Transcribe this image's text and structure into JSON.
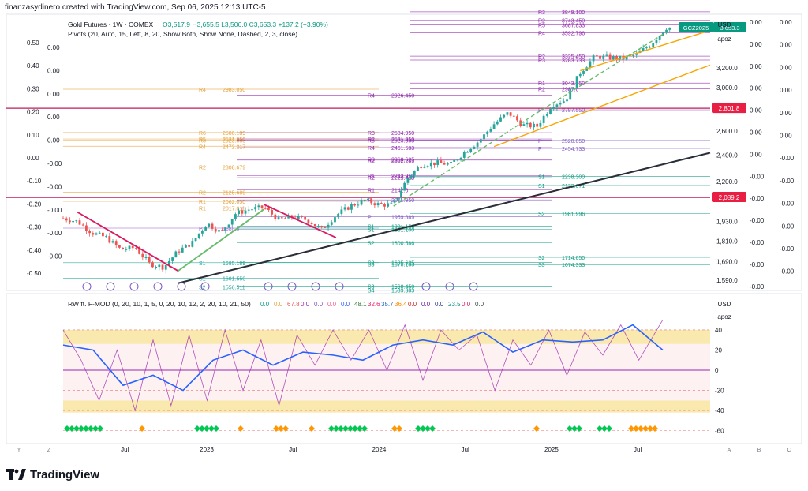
{
  "header": {
    "created_by": "finanzasydinero created with TradingView.com, Sep 06, 2025 12:13 UTC-5"
  },
  "legend": {
    "symbol": "Gold Futures · 1W · COMEX",
    "ohlc": "O3,517.9  H3,655.5  L3,506.0  C3,653.3  +137.2 (+3.90%)",
    "pivots": "Pivots (20, Auto, 15, Left, 8, 20, Show Both, Show None, Dashed, 2, 3, close)",
    "osc": "RW ft. F-MOD (0, 20, 10, 1, 5, 0, 20, 10, 12, 2, 20, 10, 21, 50)",
    "osc_values": [
      "0.0",
      "0.0",
      "67.8",
      "0.0",
      "0.0",
      "0.0",
      "0.0",
      "48.1",
      "32.6",
      "35.7",
      "36.4",
      "0.0",
      "0.0",
      "0.0",
      "23.5",
      "0.0",
      "0.0"
    ]
  },
  "price_axis": {
    "currency": "USD",
    "scale_mode": "apoz",
    "ticks": [
      "3,200.0",
      "3,000.0",
      "2,600.0",
      "2,400.0",
      "2,200.0",
      "1,930.0",
      "1,810.0",
      "1,690.0",
      "1,590.0"
    ],
    "last_price_tag": "3,653.3",
    "symbol_tag": "GCZ2025",
    "line_tags": [
      "2,801.8",
      "2,089.2"
    ]
  },
  "left_axis_labels": [
    "0.50",
    "0.40",
    "0.30",
    "0.20",
    "0.10",
    "0.00",
    "-0.10",
    "-0.20",
    "-0.30",
    "-0.40",
    "-0.50"
  ],
  "inner_left_labels": [
    "0.00",
    "0.00",
    "0.00",
    "0.00",
    "0.00",
    "-0.00",
    "-0.00",
    "-0.00",
    "-0.00",
    "-0.00"
  ],
  "right_extra_col1": [
    "0.00",
    "0.00",
    "0.00",
    "0.00",
    "0.00",
    "0.00",
    "0.00",
    "-0.00",
    "-0.00",
    "-0.00",
    "-0.00",
    "-0.00",
    "-0.00"
  ],
  "right_extra_col2": [
    "0.00",
    "0.00",
    "0.00",
    "0.00",
    "0.00",
    "0.00",
    "-0.00",
    "-0.00",
    "-0.00",
    "-0.00",
    "-0.00",
    "-0.00"
  ],
  "osc_axis": {
    "currency": "USD",
    "scale_mode": "apoz",
    "ticks": [
      "40",
      "20",
      "0",
      "-20",
      "-40",
      "-60"
    ]
  },
  "time_axis": [
    "Jul",
    "2023",
    "Jul",
    "2024",
    "Jul",
    "2025",
    "Jul"
  ],
  "bottom_controls": [
    "Y",
    "Z",
    "A",
    "B",
    "C"
  ],
  "brand": "TradingView",
  "colors": {
    "bull": "#26a69a",
    "bear": "#ef5350",
    "support": "#f7a600",
    "trendline": "#2a2e39",
    "red_line": "#c2185b",
    "tag_green": "#089981",
    "tag_red": "#e91e43",
    "osc_blue": "#2962ff",
    "osc_purple": "#9c27b0",
    "osc_band": "#f5d76e"
  },
  "pivot_levels": {
    "left": [
      {
        "label": "R4",
        "value": "2983.050"
      },
      {
        "label": "R6",
        "value": "2586.189"
      },
      {
        "label": "R5",
        "value": "2531.850"
      },
      {
        "label": "R3",
        "value": "2523.883"
      },
      {
        "label": "R4",
        "value": "2472.217"
      },
      {
        "label": "R2",
        "value": "2308.679"
      },
      {
        "label": "R2",
        "value": "2125.689"
      },
      {
        "label": "R1",
        "value": "2062.050"
      },
      {
        "label": "R1",
        "value": "2017.011"
      },
      {
        "label": "P",
        "value": "1888.0"
      },
      {
        "label": "S1",
        "value": "1685.189"
      },
      {
        "label": "S1",
        "value": "1601.550"
      },
      {
        "label": "S2",
        "value": "1556.511"
      }
    ],
    "middle": [
      {
        "label": "R4",
        "value": "2926.450"
      },
      {
        "label": "R3",
        "value": "2584.950"
      },
      {
        "label": "R2",
        "value": "2531.850"
      },
      {
        "label": "R5",
        "value": "2523.883"
      },
      {
        "label": "R4",
        "value": "2461.583"
      },
      {
        "label": "R3",
        "value": "2368.625"
      },
      {
        "label": "R2",
        "value": "2362.283"
      },
      {
        "label": "R1",
        "value": "2243.950"
      },
      {
        "label": "R2",
        "value": "2229.400"
      },
      {
        "label": "R1",
        "value": "2142.6"
      },
      {
        "label": "P",
        "value": "2071.950"
      },
      {
        "label": "P",
        "value": "1959.889"
      },
      {
        "label": "S1",
        "value": "1901.150"
      },
      {
        "label": "S1",
        "value": "1881.100"
      },
      {
        "label": "S2",
        "value": "1800.586"
      },
      {
        "label": "S2",
        "value": "1685.625"
      },
      {
        "label": "S3",
        "value": "1678.183"
      },
      {
        "label": "S3",
        "value": "1560.450"
      },
      {
        "label": "S4",
        "value": "1539.383"
      }
    ],
    "right": [
      {
        "label": "R3",
        "value": "3849.100"
      },
      {
        "label": "R2",
        "value": "3743.450"
      },
      {
        "label": "R5",
        "value": "3687.833"
      },
      {
        "label": "R4",
        "value": "3592.796"
      },
      {
        "label": "R2",
        "value": "3325.450"
      },
      {
        "label": "R3",
        "value": "3283.733"
      },
      {
        "label": "R1",
        "value": "3043.750"
      },
      {
        "label": "R2",
        "value": "2987.6"
      },
      {
        "label": "P",
        "value": "2787.550"
      },
      {
        "label": "P",
        "value": "2520.050"
      },
      {
        "label": "P",
        "value": "2454.733"
      },
      {
        "label": "S1",
        "value": "2238.300"
      },
      {
        "label": "S1",
        "value": "2172.671"
      },
      {
        "label": "S2",
        "value": "1981.996"
      },
      {
        "label": "S2",
        "value": "1714.650"
      },
      {
        "label": "S3",
        "value": "1674.333"
      }
    ]
  },
  "chart_data": [
    {
      "type": "candlestick",
      "title": "Gold Futures · 1W · COMEX",
      "x_range": [
        "2022-03",
        "2025-09"
      ],
      "ylim": [
        1590,
        3700
      ],
      "y_scale": "log",
      "series": [
        {
          "name": "GCZ2025",
          "anchors": [
            [
              "2022-03",
              1950
            ],
            [
              "2022-04",
              1930
            ],
            [
              "2022-05",
              1860
            ],
            [
              "2022-06",
              1830
            ],
            [
              "2022-07",
              1760
            ],
            [
              "2022-08",
              1770
            ],
            [
              "2022-09",
              1680
            ],
            [
              "2022-10",
              1660
            ],
            [
              "2022-11",
              1750
            ],
            [
              "2022-12",
              1800
            ],
            [
              "2023-01",
              1920
            ],
            [
              "2023-02",
              1860
            ],
            [
              "2023-03",
              1980
            ],
            [
              "2023-04",
              2010
            ],
            [
              "2023-05",
              2020
            ],
            [
              "2023-06",
              1940
            ],
            [
              "2023-07",
              1960
            ],
            [
              "2023-08",
              1940
            ],
            [
              "2023-09",
              1880
            ],
            [
              "2023-10",
              1970
            ],
            [
              "2023-11",
              2030
            ],
            [
              "2023-12",
              2070
            ],
            [
              "2024-01",
              2040
            ],
            [
              "2024-02",
              2040
            ],
            [
              "2024-03",
              2230
            ],
            [
              "2024-04",
              2330
            ],
            [
              "2024-05",
              2340
            ],
            [
              "2024-06",
              2330
            ],
            [
              "2024-07",
              2430
            ],
            [
              "2024-08",
              2520
            ],
            [
              "2024-09",
              2660
            ],
            [
              "2024-10",
              2760
            ],
            [
              "2024-11",
              2650
            ],
            [
              "2024-12",
              2640
            ],
            [
              "2025-01",
              2830
            ],
            [
              "2025-02",
              2880
            ],
            [
              "2025-03",
              3150
            ],
            [
              "2025-04",
              3320
            ],
            [
              "2025-05",
              3310
            ],
            [
              "2025-06",
              3300
            ],
            [
              "2025-07",
              3350
            ],
            [
              "2025-08",
              3470
            ],
            [
              "2025-09",
              3653.3
            ]
          ]
        }
      ]
    },
    {
      "type": "line",
      "title": "RW ft. F-MOD",
      "ylim": [
        -65,
        58
      ],
      "series": [
        {
          "name": "osc_blue",
          "anchors": [
            [
              0,
              25
            ],
            [
              5,
              20
            ],
            [
              10,
              -15
            ],
            [
              15,
              -5
            ],
            [
              20,
              -20
            ],
            [
              25,
              10
            ],
            [
              30,
              20
            ],
            [
              35,
              5
            ],
            [
              40,
              18
            ],
            [
              45,
              15
            ],
            [
              50,
              10
            ],
            [
              55,
              25
            ],
            [
              60,
              30
            ],
            [
              65,
              25
            ],
            [
              70,
              38
            ],
            [
              75,
              18
            ],
            [
              80,
              30
            ],
            [
              85,
              28
            ],
            [
              90,
              30
            ],
            [
              95,
              45
            ],
            [
              100,
              20
            ]
          ]
        },
        {
          "name": "osc_purple",
          "anchors": [
            [
              0,
              40
            ],
            [
              3,
              10
            ],
            [
              6,
              -30
            ],
            [
              9,
              20
            ],
            [
              12,
              -40
            ],
            [
              15,
              30
            ],
            [
              18,
              -35
            ],
            [
              21,
              35
            ],
            [
              24,
              -30
            ],
            [
              27,
              40
            ],
            [
              30,
              -20
            ],
            [
              33,
              30
            ],
            [
              36,
              -35
            ],
            [
              39,
              35
            ],
            [
              42,
              5
            ],
            [
              45,
              40
            ],
            [
              48,
              10
            ],
            [
              51,
              40
            ],
            [
              54,
              0
            ],
            [
              57,
              45
            ],
            [
              60,
              -10
            ],
            [
              63,
              40
            ],
            [
              66,
              20
            ],
            [
              69,
              35
            ],
            [
              72,
              -20
            ],
            [
              75,
              30
            ],
            [
              78,
              5
            ],
            [
              81,
              40
            ],
            [
              84,
              -5
            ],
            [
              87,
              38
            ],
            [
              90,
              15
            ],
            [
              93,
              45
            ],
            [
              96,
              10
            ],
            [
              100,
              50
            ]
          ]
        }
      ]
    }
  ]
}
